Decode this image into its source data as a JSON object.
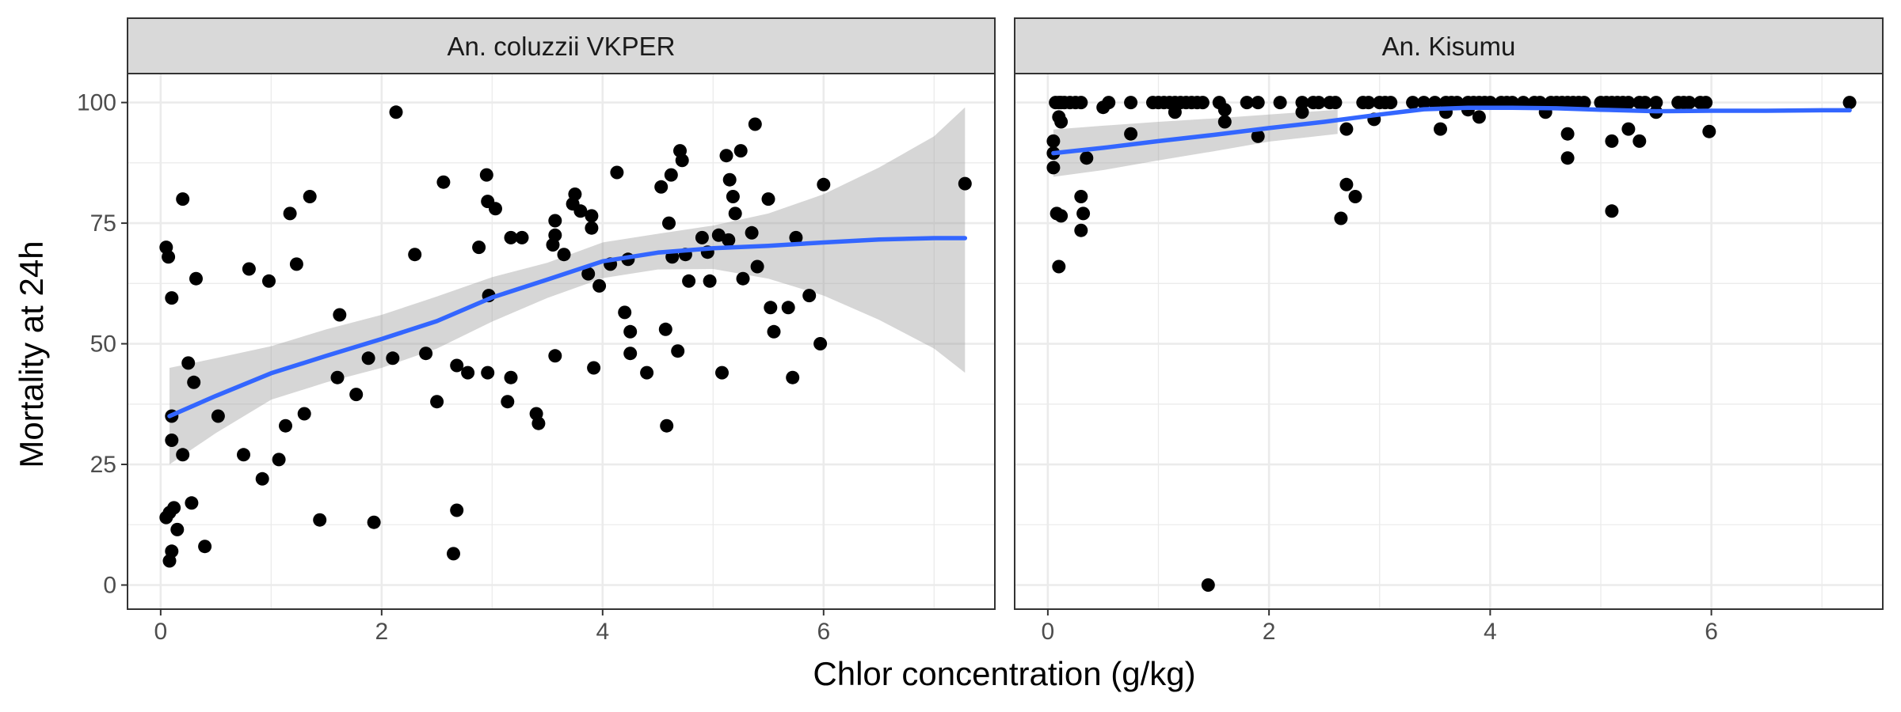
{
  "chart_data": {
    "type": "scatter",
    "xlabel": "Chlor concentration (g/kg)",
    "ylabel": "Mortality at 24h",
    "xlim": [
      -0.3,
      7.55
    ],
    "ylim": [
      -5,
      106
    ],
    "x_ticks": [
      0,
      2,
      4,
      6
    ],
    "y_ticks": [
      0,
      25,
      50,
      75,
      100
    ],
    "x_tick_labels": [
      "0",
      "2",
      "4",
      "6"
    ],
    "y_tick_labels": [
      "0",
      "25",
      "50",
      "75",
      "100"
    ],
    "grid": true,
    "colors": {
      "smooth_line": "#3366FF",
      "ribbon": "#999999",
      "points": "#000000",
      "strip_fill": "#D9D9D9",
      "grid": "#EBEBEB"
    },
    "panels": [
      {
        "strip_label": "An. coluzzii VKPER",
        "points": [
          [
            0.05,
            70
          ],
          [
            0.07,
            68
          ],
          [
            0.1,
            59.5
          ],
          [
            0.1,
            35
          ],
          [
            0.1,
            30
          ],
          [
            0.08,
            15
          ],
          [
            0.12,
            16
          ],
          [
            0.05,
            14
          ],
          [
            0.1,
            7
          ],
          [
            0.08,
            5
          ],
          [
            0.15,
            11.5
          ],
          [
            0.2,
            27
          ],
          [
            0.2,
            80
          ],
          [
            0.25,
            46
          ],
          [
            0.3,
            42
          ],
          [
            0.28,
            17
          ],
          [
            0.32,
            63.5
          ],
          [
            0.4,
            8
          ],
          [
            0.52,
            35
          ],
          [
            0.75,
            27
          ],
          [
            0.8,
            65.5
          ],
          [
            0.92,
            22
          ],
          [
            0.98,
            63
          ],
          [
            1.07,
            26
          ],
          [
            1.13,
            33
          ],
          [
            1.17,
            77
          ],
          [
            1.23,
            66.5
          ],
          [
            1.3,
            35.5
          ],
          [
            1.35,
            80.5
          ],
          [
            1.44,
            13.5
          ],
          [
            1.6,
            43
          ],
          [
            1.62,
            56
          ],
          [
            1.77,
            39.5
          ],
          [
            1.88,
            47
          ],
          [
            1.93,
            13
          ],
          [
            2.1,
            47
          ],
          [
            2.13,
            98
          ],
          [
            2.3,
            68.5
          ],
          [
            2.4,
            48
          ],
          [
            2.5,
            38
          ],
          [
            2.56,
            83.5
          ],
          [
            2.65,
            6.5
          ],
          [
            2.68,
            45.5
          ],
          [
            2.68,
            15.5
          ],
          [
            2.78,
            44
          ],
          [
            2.88,
            70
          ],
          [
            2.95,
            85
          ],
          [
            2.96,
            79.5
          ],
          [
            2.97,
            60
          ],
          [
            2.96,
            44
          ],
          [
            3.03,
            78
          ],
          [
            3.14,
            38
          ],
          [
            3.17,
            72
          ],
          [
            3.17,
            43
          ],
          [
            3.27,
            72
          ],
          [
            3.4,
            35.5
          ],
          [
            3.42,
            33.5
          ],
          [
            3.55,
            70.5
          ],
          [
            3.57,
            75.5
          ],
          [
            3.57,
            72.5
          ],
          [
            3.57,
            47.5
          ],
          [
            3.65,
            68.5
          ],
          [
            3.73,
            79
          ],
          [
            3.75,
            81
          ],
          [
            3.8,
            77.5
          ],
          [
            3.87,
            64.5
          ],
          [
            3.9,
            76.5
          ],
          [
            3.9,
            74
          ],
          [
            3.92,
            45
          ],
          [
            3.97,
            62
          ],
          [
            4.07,
            66.5
          ],
          [
            4.13,
            85.5
          ],
          [
            4.2,
            56.5
          ],
          [
            4.23,
            67.5
          ],
          [
            4.25,
            52.5
          ],
          [
            4.25,
            48
          ],
          [
            4.4,
            44
          ],
          [
            4.53,
            82.5
          ],
          [
            4.57,
            53
          ],
          [
            4.58,
            33
          ],
          [
            4.6,
            75
          ],
          [
            4.62,
            85
          ],
          [
            4.63,
            68
          ],
          [
            4.68,
            48.5
          ],
          [
            4.7,
            90
          ],
          [
            4.72,
            88
          ],
          [
            4.75,
            68.5
          ],
          [
            4.78,
            63
          ],
          [
            4.9,
            72
          ],
          [
            4.95,
            69
          ],
          [
            4.97,
            63
          ],
          [
            5.05,
            72.5
          ],
          [
            5.08,
            44
          ],
          [
            5.12,
            89
          ],
          [
            5.14,
            71.5
          ],
          [
            5.15,
            84
          ],
          [
            5.18,
            80.5
          ],
          [
            5.2,
            77
          ],
          [
            5.25,
            90
          ],
          [
            5.27,
            63.5
          ],
          [
            5.35,
            73
          ],
          [
            5.38,
            95.5
          ],
          [
            5.4,
            66
          ],
          [
            5.5,
            80
          ],
          [
            5.52,
            57.5
          ],
          [
            5.55,
            52.5
          ],
          [
            5.68,
            57.5
          ],
          [
            5.72,
            43
          ],
          [
            5.75,
            72
          ],
          [
            5.87,
            60
          ],
          [
            5.97,
            50
          ],
          [
            6.0,
            83
          ],
          [
            7.28,
            83.2
          ]
        ],
        "smooth": {
          "x": [
            0.08,
            0.5,
            1.0,
            1.5,
            2.0,
            2.5,
            3.0,
            3.5,
            4.0,
            4.5,
            5.0,
            5.5,
            6.0,
            6.5,
            7.0,
            7.28
          ],
          "y": [
            35,
            39.2,
            43.9,
            47.5,
            51,
            54.7,
            59.6,
            63.3,
            67.1,
            68.9,
            69.8,
            70.3,
            71,
            71.6,
            71.9,
            71.9
          ]
        },
        "ribbon": {
          "x": [
            0.08,
            0.5,
            1.0,
            1.5,
            2.0,
            2.5,
            3.0,
            3.5,
            4.0,
            4.5,
            5.0,
            5.5,
            6.0,
            6.5,
            7.0,
            7.28
          ],
          "upper": [
            45,
            47,
            49.5,
            53,
            56,
            59.8,
            63.8,
            66.8,
            71,
            72.8,
            74.5,
            77,
            81,
            86.5,
            93,
            99
          ],
          "lower": [
            25,
            31.5,
            38.4,
            42,
            45,
            49,
            54.6,
            59.5,
            63.6,
            65.4,
            65.5,
            63.5,
            60,
            55,
            49,
            44
          ]
        }
      },
      {
        "strip_label": "An. Kisumu",
        "points": [
          [
            0.07,
            100
          ],
          [
            0.1,
            100
          ],
          [
            0.12,
            100
          ],
          [
            0.15,
            100
          ],
          [
            0.2,
            100
          ],
          [
            0.25,
            100
          ],
          [
            0.3,
            100
          ],
          [
            0.55,
            100
          ],
          [
            0.75,
            100
          ],
          [
            0.95,
            100
          ],
          [
            1.0,
            100
          ],
          [
            1.05,
            100
          ],
          [
            1.1,
            100
          ],
          [
            1.15,
            100
          ],
          [
            1.2,
            100
          ],
          [
            1.25,
            100
          ],
          [
            1.3,
            100
          ],
          [
            1.35,
            100
          ],
          [
            1.4,
            100
          ],
          [
            1.55,
            100
          ],
          [
            1.8,
            100
          ],
          [
            1.9,
            100
          ],
          [
            2.1,
            100
          ],
          [
            2.3,
            100
          ],
          [
            2.4,
            100
          ],
          [
            2.45,
            100
          ],
          [
            2.55,
            100
          ],
          [
            2.6,
            100
          ],
          [
            2.85,
            100
          ],
          [
            2.9,
            100
          ],
          [
            3.0,
            100
          ],
          [
            3.05,
            100
          ],
          [
            3.1,
            100
          ],
          [
            3.3,
            100
          ],
          [
            3.4,
            100
          ],
          [
            3.5,
            100
          ],
          [
            3.6,
            100
          ],
          [
            3.65,
            100
          ],
          [
            3.7,
            100
          ],
          [
            3.8,
            100
          ],
          [
            3.85,
            100
          ],
          [
            3.9,
            100
          ],
          [
            3.95,
            100
          ],
          [
            4.0,
            100
          ],
          [
            4.1,
            100
          ],
          [
            4.15,
            100
          ],
          [
            4.2,
            100
          ],
          [
            4.3,
            100
          ],
          [
            4.4,
            100
          ],
          [
            4.45,
            100
          ],
          [
            4.55,
            100
          ],
          [
            4.6,
            100
          ],
          [
            4.65,
            100
          ],
          [
            4.7,
            100
          ],
          [
            4.75,
            100
          ],
          [
            4.8,
            100
          ],
          [
            4.85,
            100
          ],
          [
            5.0,
            100
          ],
          [
            5.05,
            100
          ],
          [
            5.1,
            100
          ],
          [
            5.15,
            100
          ],
          [
            5.2,
            100
          ],
          [
            5.25,
            100
          ],
          [
            5.35,
            100
          ],
          [
            5.4,
            100
          ],
          [
            5.5,
            100
          ],
          [
            5.7,
            100
          ],
          [
            5.75,
            100
          ],
          [
            5.8,
            100
          ],
          [
            5.9,
            100
          ],
          [
            5.95,
            100
          ],
          [
            7.25,
            100
          ],
          [
            0.05,
            92
          ],
          [
            0.1,
            97
          ],
          [
            0.12,
            96
          ],
          [
            0.05,
            89.5
          ],
          [
            0.05,
            86.5
          ],
          [
            0.08,
            77
          ],
          [
            0.12,
            76.5
          ],
          [
            0.1,
            66
          ],
          [
            0.35,
            88.5
          ],
          [
            0.5,
            99
          ],
          [
            0.75,
            93.5
          ],
          [
            1.15,
            98
          ],
          [
            1.6,
            96
          ],
          [
            1.6,
            98.5
          ],
          [
            1.9,
            93
          ],
          [
            2.3,
            98
          ],
          [
            2.65,
            76
          ],
          [
            2.7,
            83
          ],
          [
            2.7,
            94.5
          ],
          [
            2.78,
            80.5
          ],
          [
            2.95,
            96.5
          ],
          [
            3.55,
            94.5
          ],
          [
            3.6,
            98
          ],
          [
            3.8,
            98.5
          ],
          [
            3.9,
            97
          ],
          [
            4.5,
            98
          ],
          [
            4.7,
            88.5
          ],
          [
            4.7,
            93.5
          ],
          [
            5.1,
            77.5
          ],
          [
            5.1,
            92
          ],
          [
            5.25,
            94.5
          ],
          [
            5.35,
            92
          ],
          [
            5.5,
            98
          ],
          [
            5.98,
            94
          ],
          [
            0.3,
            80.5
          ],
          [
            0.3,
            73.5
          ],
          [
            0.32,
            77
          ],
          [
            1.45,
            0
          ]
        ],
        "smooth": {
          "x": [
            0.05,
            0.5,
            1.0,
            1.5,
            2.0,
            2.5,
            3.0,
            3.4,
            3.8,
            4.2,
            4.6,
            5.0,
            5.5,
            6.0,
            6.5,
            7.0,
            7.25
          ],
          "y": [
            89.5,
            90.6,
            92,
            93.3,
            94.7,
            96,
            97.5,
            98.6,
            98.9,
            98.9,
            98.8,
            98.5,
            98.2,
            98.3,
            98.3,
            98.4,
            98.4
          ]
        },
        "ribbon": {
          "x": [
            0.05,
            0.5,
            1.0,
            1.5,
            2.0,
            2.62
          ],
          "upper": [
            94.4,
            95.2,
            96,
            96.7,
            97.5,
            98.5
          ],
          "lower": [
            84.6,
            86,
            88,
            89.9,
            91.9,
            93.5
          ]
        }
      }
    ]
  }
}
